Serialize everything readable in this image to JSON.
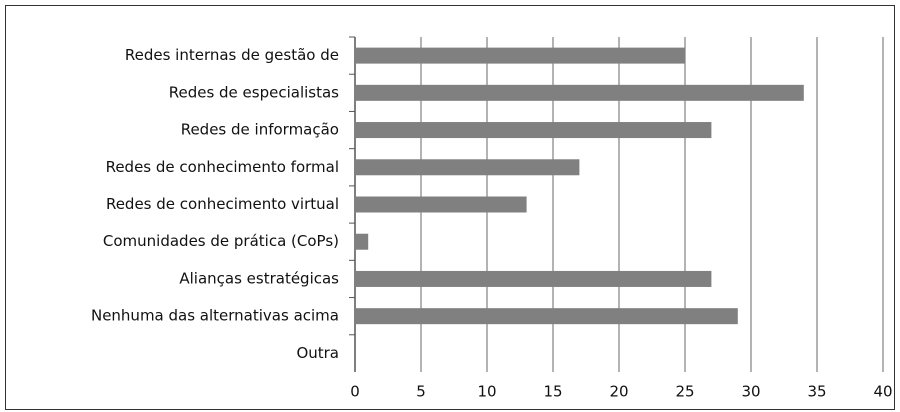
{
  "chart_data": {
    "type": "bar",
    "orientation": "horizontal",
    "categories": [
      "Redes internas de gestão de",
      "Redes de especialistas",
      "Redes de informação",
      "Redes de conhecimento formal",
      "Redes de conhecimento virtual",
      "Comunidades de prática (CoPs)",
      "Alianças estratégicas",
      "Nenhuma das alternativas acima",
      "Outra"
    ],
    "values": [
      25,
      34,
      27,
      17,
      13,
      1,
      27,
      29,
      0
    ],
    "color": "#808080",
    "xlim": [
      0,
      40
    ],
    "xticks": [
      0,
      5,
      10,
      15,
      20,
      25,
      30,
      35,
      40
    ],
    "grid": true
  }
}
